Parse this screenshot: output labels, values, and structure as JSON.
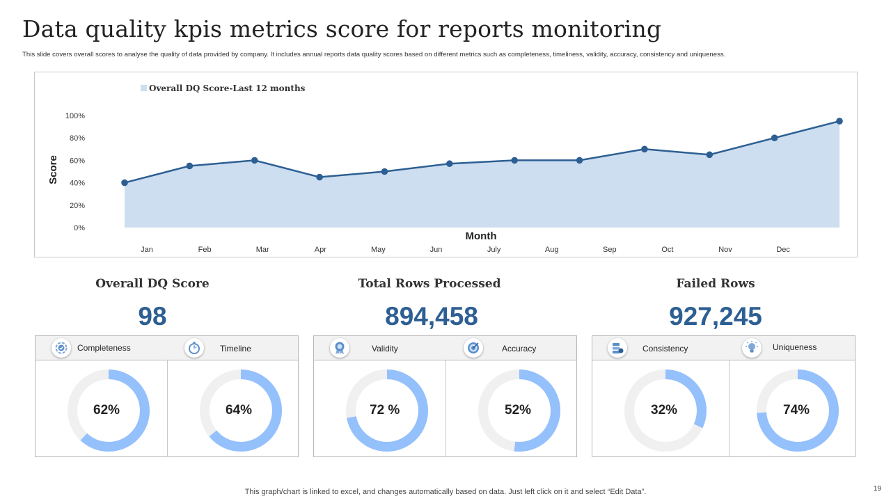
{
  "title": "Data quality kpis metrics score for reports monitoring",
  "subtitle": "This slide covers overall scores to analyse the quality of data provided by company. It includes annual reports data quality scores based on different metrics such as completeness, timeliness, validity, accuracy, consistency and uniqueness.",
  "chart_data": {
    "type": "area",
    "title": "",
    "legend": "Overall DQ Score-Last 12 months",
    "legend_position": "top-left",
    "xlabel": "Month",
    "ylabel": "Score",
    "categories": [
      "Jan",
      "Feb",
      "Mar",
      "Apr",
      "May",
      "Jun",
      "July",
      "Aug",
      "Sep",
      "Oct",
      "Nov",
      "Dec"
    ],
    "values": [
      40,
      55,
      60,
      45,
      50,
      57,
      60,
      60,
      70,
      65,
      80,
      95
    ],
    "yticks": [
      "0%",
      "20%",
      "40%",
      "60%",
      "80%",
      "100%"
    ],
    "ylim": [
      0,
      100
    ],
    "colors": {
      "line": "#2d5f93",
      "fill": "#ccdef0",
      "marker": "#2d5f93"
    }
  },
  "kpis": [
    {
      "title": "Overall DQ Score",
      "value": "98",
      "metrics": [
        {
          "label": "Completeness",
          "icon": "check-badge-icon",
          "value": 62,
          "display": "62%"
        },
        {
          "label": "Timeline",
          "icon": "stopwatch-icon",
          "value": 64,
          "display": "64%"
        }
      ]
    },
    {
      "title": "Total Rows Processed",
      "value": "894,458",
      "metrics": [
        {
          "label": "Validity",
          "icon": "award-icon",
          "value": 72,
          "display": "72 %"
        },
        {
          "label": "Accuracy",
          "icon": "target-icon",
          "value": 52,
          "display": "52%"
        }
      ]
    },
    {
      "title": "Failed Rows",
      "value": "927,245",
      "metrics": [
        {
          "label": "Consistency",
          "icon": "database-icon",
          "value": 32,
          "display": "32%"
        },
        {
          "label": "Uniqueness",
          "icon": "lightbulb-icon",
          "value": 74,
          "display": "74%"
        }
      ]
    }
  ],
  "donut_colors": {
    "track": "#f0f0f0",
    "value": "#94c0fc"
  },
  "footer": "This graph/chart is linked to excel,  and changes automatically based on data. Just left click on it and select “Edit Data”.",
  "page_number": "19"
}
